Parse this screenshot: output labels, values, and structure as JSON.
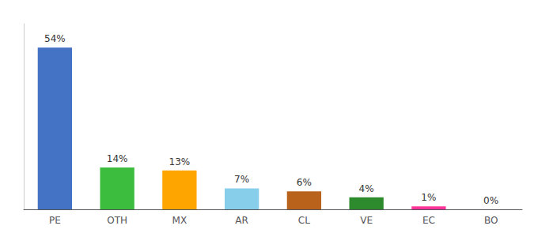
{
  "chart_data": {
    "type": "bar",
    "categories": [
      "PE",
      "OTH",
      "MX",
      "AR",
      "CL",
      "VE",
      "EC",
      "BO"
    ],
    "values": [
      54,
      14,
      13,
      7,
      6,
      4,
      1,
      0
    ],
    "value_labels": [
      "54%",
      "14%",
      "13%",
      "7%",
      "6%",
      "4%",
      "1%",
      "0%"
    ],
    "colors": [
      "#4472C4",
      "#3DBD3D",
      "#FFA500",
      "#87CEEB",
      "#B8621B",
      "#2D8A2D",
      "#FF3399",
      "#DDDDDD"
    ],
    "ylim": [
      0,
      62
    ],
    "data_labels": true,
    "tick_labels": "x",
    "grid": false
  }
}
